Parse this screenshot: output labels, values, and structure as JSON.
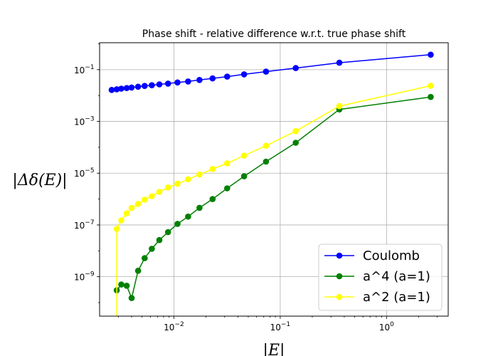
{
  "chart_data": {
    "type": "line",
    "title": "Phase shift - relative difference w.r.t. true phase shift",
    "xlabel": "|E|",
    "ylabel": "|Δδ(E)|",
    "xscale": "log",
    "yscale": "log",
    "xlim": [
      0.002,
      3.8
    ],
    "ylim": [
      3e-11,
      1.1
    ],
    "x_ticks": [
      {
        "value": 0.01,
        "base": "10",
        "exp": "−2"
      },
      {
        "value": 0.1,
        "base": "10",
        "exp": "−1"
      },
      {
        "value": 1,
        "base": "10",
        "exp": "0"
      }
    ],
    "y_ticks": [
      {
        "value": 1e-09,
        "base": "10",
        "exp": "−9"
      },
      {
        "value": 1e-07,
        "base": "10",
        "exp": "−7"
      },
      {
        "value": 1e-05,
        "base": "10",
        "exp": "−5"
      },
      {
        "value": 0.001,
        "base": "10",
        "exp": "−3"
      },
      {
        "value": 0.1,
        "base": "10",
        "exp": "−1"
      }
    ],
    "grid": true,
    "legend_position": "lower-right",
    "series": [
      {
        "name": "Coulomb",
        "color": "#0000ff",
        "x": [
          0.0026,
          0.0029,
          0.0032,
          0.0036,
          0.004,
          0.0046,
          0.0053,
          0.0062,
          0.0073,
          0.0088,
          0.0108,
          0.0136,
          0.0174,
          0.0231,
          0.0317,
          0.0457,
          0.0735,
          0.14,
          0.36,
          2.6
        ],
        "y": [
          0.0165,
          0.0175,
          0.0185,
          0.0195,
          0.0205,
          0.022,
          0.0235,
          0.025,
          0.027,
          0.029,
          0.032,
          0.035,
          0.04,
          0.046,
          0.054,
          0.066,
          0.084,
          0.115,
          0.185,
          0.38
        ]
      },
      {
        "name": "a^4 (a=1)",
        "color": "#008000",
        "x": [
          0.0029,
          0.0032,
          0.0036,
          0.004,
          0.0046,
          0.0053,
          0.0062,
          0.0073,
          0.0088,
          0.0108,
          0.0136,
          0.0174,
          0.0231,
          0.0317,
          0.0457,
          0.0735,
          0.14,
          0.36,
          2.6
        ],
        "y": [
          3e-10,
          5e-10,
          4.5e-10,
          1.5e-10,
          1.7e-09,
          5.2e-09,
          1.2e-08,
          2.6e-08,
          5.3e-08,
          1.1e-07,
          2.1e-07,
          4.6e-07,
          1e-06,
          2.6e-06,
          7.6e-06,
          2.8e-05,
          0.00015,
          0.0029,
          0.0088
        ]
      },
      {
        "name": "a^2 (a=1)",
        "color": "#ffff00",
        "x": [
          0.0029,
          0.0029,
          0.0032,
          0.0036,
          0.004,
          0.0046,
          0.0053,
          0.0062,
          0.0073,
          0.0088,
          0.0108,
          0.0136,
          0.0174,
          0.0231,
          0.0317,
          0.0457,
          0.0735,
          0.14,
          0.36,
          2.6
        ],
        "y": [
          3e-11,
          7e-08,
          1.5e-07,
          2.8e-07,
          4.5e-07,
          6.5e-07,
          9.5e-07,
          1.3e-06,
          1.9e-06,
          2.8e-06,
          3.9e-06,
          5.8e-06,
          8.9e-06,
          1.45e-05,
          2.4e-05,
          4.8e-05,
          0.000115,
          0.00042,
          0.0039,
          0.024
        ],
        "markers_skip_first": true
      }
    ]
  }
}
